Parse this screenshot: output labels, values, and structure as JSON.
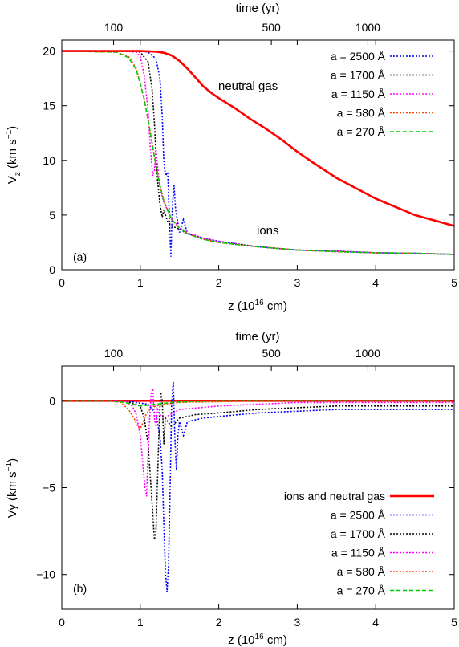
{
  "chart_data": [
    {
      "type": "line",
      "panel_label": "(a)",
      "xlabel": "z (10",
      "xlabel_exp": "16",
      "xlabel_tail": " cm)",
      "ylabel": "V",
      "ylabel_sub": "z",
      "ylabel_tail": " (km s",
      "ylabel_exp": "−1",
      "ylabel_close": ")",
      "xlim": [
        0,
        5
      ],
      "ylim": [
        0,
        21
      ],
      "xticks": [
        "0",
        "1",
        "2",
        "3",
        "4",
        "5"
      ],
      "yticks": [
        "0",
        "5",
        "10",
        "15",
        "20"
      ],
      "top_axis": {
        "label": "time (yr)",
        "ticks": [
          {
            "z": 0.66,
            "label": "100"
          },
          {
            "z": 2.67,
            "label": "500"
          },
          {
            "z": 3.9,
            "label": "1000"
          }
        ]
      },
      "annotations": [
        "neutral gas",
        "ions"
      ],
      "legend_position": "top-right",
      "series": [
        {
          "name": "a = 2500 Å",
          "color": "#0000ff",
          "style": "dotted",
          "x": [
            0,
            0.8,
            1.0,
            1.1,
            1.2,
            1.25,
            1.28,
            1.3,
            1.32,
            1.35,
            1.37,
            1.39,
            1.41,
            1.43,
            1.45,
            1.5,
            1.55,
            1.6,
            1.8,
            2.0,
            2.5,
            3.0,
            3.5,
            4.0,
            4.5,
            5.0
          ],
          "y": [
            20,
            20,
            20,
            19.9,
            19.3,
            17.5,
            14.0,
            10.0,
            8.6,
            8.9,
            5.0,
            1.2,
            6.0,
            7.7,
            5.5,
            3.4,
            4.6,
            3.3,
            2.9,
            2.6,
            2.1,
            1.8,
            1.7,
            1.55,
            1.5,
            1.4
          ]
        },
        {
          "name": "a = 1700 Å",
          "color": "#000000",
          "style": "dotted",
          "x": [
            0,
            0.8,
            1.0,
            1.1,
            1.15,
            1.18,
            1.2,
            1.22,
            1.25,
            1.28,
            1.3,
            1.32,
            1.35,
            1.4,
            1.5,
            1.6,
            1.8,
            2.0,
            2.5,
            3.0,
            3.5,
            4.0,
            4.5,
            5.0
          ],
          "y": [
            20,
            20,
            19.9,
            19.0,
            16.5,
            13.5,
            10.5,
            8.2,
            6.0,
            4.8,
            5.5,
            5.0,
            4.4,
            4.0,
            3.7,
            3.3,
            2.8,
            2.5,
            2.1,
            1.8,
            1.65,
            1.55,
            1.5,
            1.4
          ]
        },
        {
          "name": "a = 1150 Å",
          "color": "#ff00ff",
          "style": "dotted",
          "x": [
            0,
            0.8,
            0.95,
            1.0,
            1.05,
            1.1,
            1.13,
            1.16,
            1.18,
            1.2,
            1.22,
            1.25,
            1.3,
            1.4,
            1.5,
            1.6,
            1.8,
            2.0,
            2.5,
            3.0,
            3.5,
            4.0,
            4.5,
            5.0
          ],
          "y": [
            20,
            20,
            19.9,
            19.5,
            17.8,
            14.5,
            11.0,
            8.6,
            9.0,
            11.0,
            9.5,
            7.5,
            6.2,
            4.6,
            3.9,
            3.4,
            2.9,
            2.6,
            2.1,
            1.8,
            1.7,
            1.55,
            1.5,
            1.4
          ]
        },
        {
          "name": "a = 580 Å",
          "color": "#ff4500",
          "style": "dotted",
          "x": [
            0,
            0.7,
            0.85,
            0.95,
            1.0,
            1.05,
            1.1,
            1.15,
            1.2,
            1.25,
            1.3,
            1.4,
            1.5,
            1.6,
            1.8,
            2.0,
            2.5,
            3.0,
            3.5,
            4.0,
            4.5,
            5.0
          ],
          "y": [
            20,
            19.9,
            19.5,
            18.4,
            17.0,
            15.6,
            13.7,
            11.6,
            9.5,
            7.7,
            6.3,
            4.6,
            3.8,
            3.3,
            2.8,
            2.5,
            2.1,
            1.8,
            1.65,
            1.55,
            1.5,
            1.4
          ]
        },
        {
          "name": "a = 270 Å",
          "color": "#00cc00",
          "style": "dashed",
          "x": [
            0,
            0.7,
            0.85,
            0.95,
            1.0,
            1.05,
            1.1,
            1.15,
            1.2,
            1.25,
            1.3,
            1.4,
            1.5,
            1.6,
            1.8,
            2.0,
            2.5,
            3.0,
            3.5,
            4.0,
            4.5,
            5.0
          ],
          "y": [
            20,
            19.9,
            19.4,
            18.3,
            17.0,
            15.6,
            13.7,
            11.6,
            9.5,
            7.7,
            6.3,
            4.6,
            3.8,
            3.3,
            2.8,
            2.5,
            2.1,
            1.8,
            1.65,
            1.55,
            1.5,
            1.4
          ]
        },
        {
          "name": "",
          "color": "#ff0000",
          "style": "solid",
          "x": [
            0,
            0.5,
            1.0,
            1.2,
            1.3,
            1.4,
            1.5,
            1.6,
            1.7,
            1.8,
            1.9,
            2.0,
            2.2,
            2.4,
            2.6,
            2.8,
            3.0,
            3.2,
            3.5,
            4.0,
            4.5,
            5.0
          ],
          "y": [
            20,
            20,
            20,
            19.95,
            19.85,
            19.6,
            19.1,
            18.4,
            17.6,
            16.8,
            16.2,
            15.7,
            14.8,
            13.8,
            12.9,
            11.9,
            10.8,
            9.8,
            8.4,
            6.5,
            5.0,
            4.0
          ]
        }
      ]
    },
    {
      "type": "line",
      "panel_label": "(b)",
      "xlabel": "z (10",
      "xlabel_exp": "16",
      "xlabel_tail": " cm)",
      "ylabel": "Vy",
      "ylabel_tail": " (km s",
      "ylabel_exp": "−1",
      "ylabel_close": ")",
      "xlim": [
        0,
        5
      ],
      "ylim": [
        -12,
        2
      ],
      "xticks": [
        "0",
        "1",
        "2",
        "3",
        "4",
        "5"
      ],
      "yticks": [
        "−10",
        "−5",
        "0"
      ],
      "top_axis": {
        "label": "time (yr)",
        "ticks": [
          {
            "z": 0.66,
            "label": "100"
          },
          {
            "z": 2.67,
            "label": "500"
          },
          {
            "z": 3.9,
            "label": "1000"
          }
        ]
      },
      "legend_position": "bottom-right",
      "series": [
        {
          "name": "ions and neutral gas",
          "color": "#ff0000",
          "style": "solid",
          "x": [
            0,
            5
          ],
          "y": [
            0,
            0
          ]
        },
        {
          "name": "a = 2500 Å",
          "color": "#0000ff",
          "style": "dotted",
          "x": [
            0,
            0.8,
            1.1,
            1.2,
            1.25,
            1.28,
            1.3,
            1.32,
            1.34,
            1.36,
            1.38,
            1.4,
            1.42,
            1.44,
            1.46,
            1.48,
            1.5,
            1.52,
            1.55,
            1.6,
            1.8,
            2.0,
            2.5,
            3.0,
            3.5,
            4.0,
            4.5,
            5.0
          ],
          "y": [
            0,
            0,
            -0.2,
            -0.8,
            -2.0,
            -4.0,
            -7.0,
            -9.8,
            -11.0,
            -9.5,
            -5.0,
            -0.2,
            1.1,
            -2.0,
            -4.0,
            -2.0,
            -1.2,
            -1.5,
            -2.0,
            -1.2,
            -1.0,
            -0.9,
            -0.7,
            -0.6,
            -0.5,
            -0.5,
            -0.5,
            -0.5
          ]
        },
        {
          "name": "a = 1700 Å",
          "color": "#000000",
          "style": "dotted",
          "x": [
            0,
            0.8,
            1.0,
            1.05,
            1.1,
            1.13,
            1.16,
            1.18,
            1.2,
            1.22,
            1.24,
            1.26,
            1.28,
            1.3,
            1.32,
            1.35,
            1.4,
            1.5,
            1.7,
            2.0,
            2.5,
            3.0,
            3.5,
            4.0,
            4.5,
            5.0
          ],
          "y": [
            0,
            0,
            -0.3,
            -1.0,
            -2.5,
            -4.5,
            -6.5,
            -8.0,
            -7.5,
            -4.5,
            -1.5,
            0.5,
            0.0,
            -2.5,
            -1.0,
            -1.2,
            -1.5,
            -1.0,
            -0.8,
            -0.7,
            -0.5,
            -0.4,
            -0.3,
            -0.3,
            -0.3,
            -0.3
          ]
        },
        {
          "name": "a = 1150 Å",
          "color": "#ff00ff",
          "style": "dotted",
          "x": [
            0,
            0.8,
            0.9,
            0.95,
            1.0,
            1.03,
            1.06,
            1.08,
            1.1,
            1.12,
            1.14,
            1.16,
            1.18,
            1.2,
            1.22,
            1.25,
            1.3,
            1.5,
            2.0,
            2.5,
            3.0,
            3.5,
            4.0,
            4.5,
            5.0
          ],
          "y": [
            0,
            0,
            -0.3,
            -0.8,
            -2.0,
            -3.5,
            -5.0,
            -5.5,
            -3.0,
            -1.0,
            0.5,
            0.7,
            -1.0,
            -1.5,
            -0.5,
            -0.8,
            -1.0,
            -0.5,
            -0.3,
            -0.2,
            -0.1,
            -0.1,
            -0.1,
            -0.1,
            -0.1
          ]
        },
        {
          "name": "a = 580 Å",
          "color": "#ff4500",
          "style": "dotted",
          "x": [
            0,
            0.6,
            0.75,
            0.85,
            0.92,
            0.97,
            1.0,
            1.03,
            1.06,
            1.1,
            1.15,
            1.2,
            1.3,
            1.5,
            2.0,
            2.5,
            3.0,
            3.5,
            4.0,
            4.5,
            5.0
          ],
          "y": [
            0,
            0,
            -0.1,
            -0.5,
            -1.0,
            -1.5,
            -1.6,
            -1.3,
            -0.9,
            -0.6,
            -0.4,
            -0.3,
            -0.2,
            -0.1,
            -0.05,
            0,
            0,
            0,
            0,
            0,
            0
          ]
        },
        {
          "name": "a = 270 Å",
          "color": "#00cc00",
          "style": "dashed",
          "x": [
            0,
            0.6,
            0.8,
            0.9,
            1.0,
            1.1,
            1.2,
            1.4,
            1.6,
            2.0,
            3.0,
            4.0,
            5.0
          ],
          "y": [
            0,
            0,
            -0.1,
            -0.2,
            -0.3,
            -0.25,
            -0.2,
            -0.1,
            -0.05,
            0,
            0,
            0,
            0
          ]
        }
      ]
    }
  ]
}
